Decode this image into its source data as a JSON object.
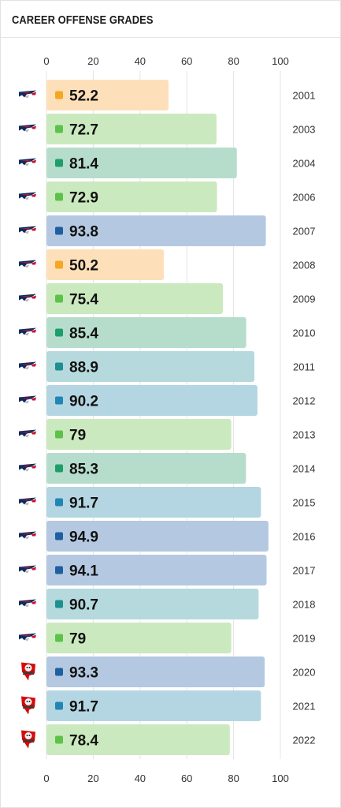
{
  "header": {
    "title": "CAREER OFFENSE GRADES"
  },
  "colors": {
    "low": "#f5a623",
    "low_bar": "#fde0b9",
    "mid": "#5cc24a",
    "mid_bar": "#cbe9be",
    "good": "#1e9e6a",
    "good_bar": "#b6ddcb",
    "high": "#1e8f8f",
    "high_bar": "#b5d9dc",
    "great": "#2186b4",
    "great_bar": "#b4d6e2",
    "elite": "#1f5f9f",
    "elite_bar": "#b4c9e1"
  },
  "chart_data": {
    "type": "bar",
    "orientation": "horizontal",
    "title": "CAREER OFFENSE GRADES",
    "xlim": [
      0,
      100
    ],
    "x_ticks": [
      "0",
      "20",
      "40",
      "60",
      "80",
      "100"
    ],
    "grid": true,
    "categories": [
      "2001",
      "2003",
      "2004",
      "2006",
      "2007",
      "2008",
      "2009",
      "2010",
      "2011",
      "2012",
      "2013",
      "2014",
      "2015",
      "2016",
      "2017",
      "2018",
      "2019",
      "2020",
      "2021",
      "2022"
    ],
    "values": [
      52.2,
      72.7,
      81.4,
      72.9,
      93.8,
      50.2,
      75.4,
      85.4,
      88.9,
      90.2,
      79,
      85.3,
      91.7,
      94.9,
      94.1,
      90.7,
      79,
      93.3,
      91.7,
      78.4
    ],
    "value_labels": [
      "52.2",
      "72.7",
      "81.4",
      "72.9",
      "93.8",
      "50.2",
      "75.4",
      "85.4",
      "88.9",
      "90.2",
      "79",
      "85.3",
      "91.7",
      "94.9",
      "94.1",
      "90.7",
      "79",
      "93.3",
      "91.7",
      "78.4"
    ],
    "teams": [
      "patriots-logo-icon",
      "patriots-logo-icon",
      "patriots-logo-icon",
      "patriots-logo-icon",
      "patriots-logo-icon",
      "patriots-logo-icon",
      "patriots-logo-icon",
      "patriots-logo-icon",
      "patriots-logo-icon",
      "patriots-logo-icon",
      "patriots-logo-icon",
      "patriots-logo-icon",
      "patriots-logo-icon",
      "patriots-logo-icon",
      "patriots-logo-icon",
      "patriots-logo-icon",
      "patriots-logo-icon",
      "buccaneers-logo-icon",
      "buccaneers-logo-icon",
      "buccaneers-logo-icon"
    ],
    "tiers": [
      "low",
      "mid",
      "good",
      "mid",
      "elite",
      "low",
      "mid",
      "good",
      "high",
      "great",
      "mid",
      "good",
      "great",
      "elite",
      "elite",
      "high",
      "mid",
      "elite",
      "great",
      "mid"
    ]
  }
}
